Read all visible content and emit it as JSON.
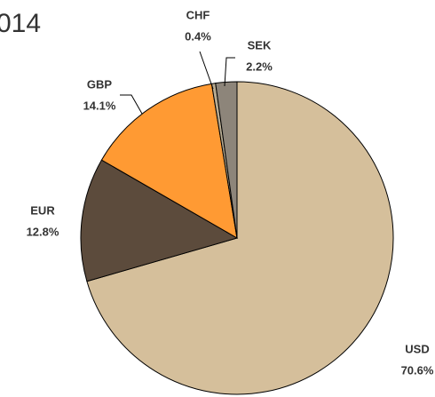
{
  "chart_data": {
    "type": "pie",
    "title": "014",
    "categories": [
      "USD",
      "EUR",
      "GBP",
      "CHF",
      "SEK"
    ],
    "values": [
      70.6,
      12.8,
      14.1,
      0.4,
      2.2
    ],
    "value_labels": [
      "70.6%",
      "12.8%",
      "14.1%",
      "0.4%",
      "2.2%"
    ],
    "colors": [
      "#d5bf9b",
      "#5c4b3c",
      "#ff9a33",
      "#b7ab92",
      "#8d857a"
    ]
  }
}
